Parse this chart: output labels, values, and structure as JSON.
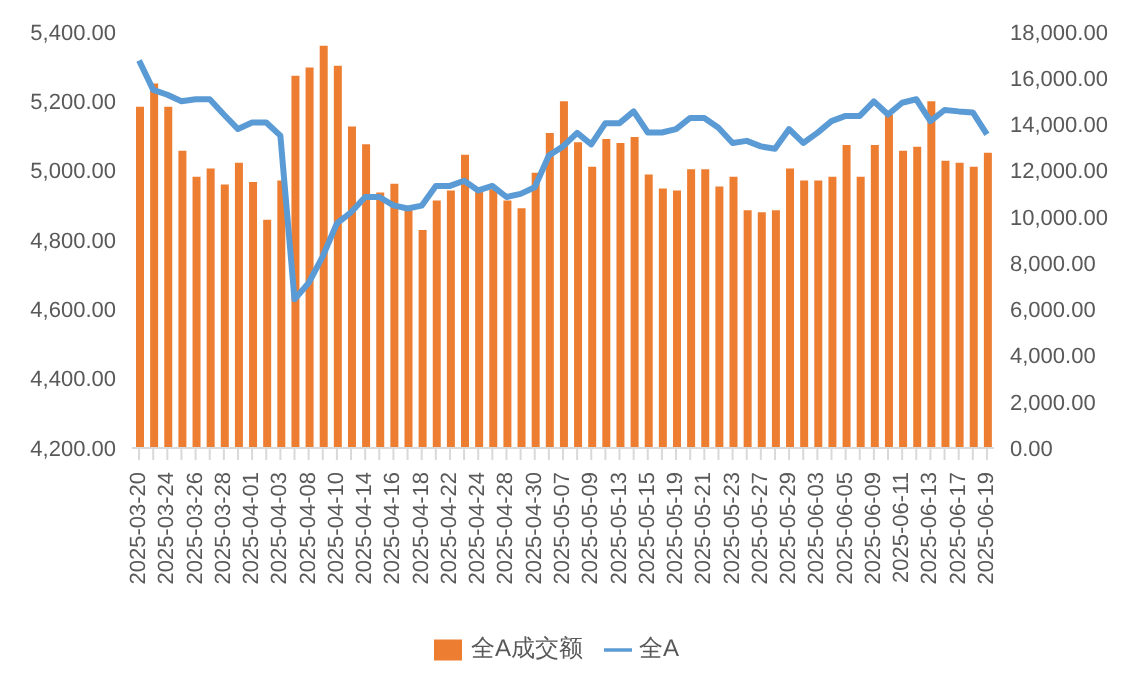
{
  "chart_data": {
    "type": "bar",
    "categories": [
      "2025-03-20",
      null,
      "2025-03-24",
      null,
      "2025-03-26",
      null,
      "2025-03-28",
      null,
      "2025-04-01",
      null,
      "2025-04-03",
      null,
      "2025-04-08",
      null,
      "2025-04-10",
      null,
      "2025-04-14",
      null,
      "2025-04-16",
      null,
      "2025-04-18",
      null,
      "2025-04-22",
      null,
      "2025-04-24",
      null,
      "2025-04-28",
      null,
      "2025-04-30",
      null,
      "2025-05-07",
      null,
      "2025-05-09",
      null,
      "2025-05-13",
      null,
      "2025-05-15",
      null,
      "2025-05-19",
      null,
      "2025-05-21",
      null,
      "2025-05-23",
      null,
      "2025-05-27",
      null,
      "2025-05-29",
      null,
      "2025-06-03",
      null,
      "2025-06-05",
      null,
      "2025-06-09",
      null,
      "2025-06-11",
      null,
      "2025-06-13",
      null,
      "2025-06-17",
      null,
      "2025-06-19"
    ],
    "series": [
      {
        "name": "全A成交额",
        "axis": "y2",
        "color": "#ed7d31",
        "values": [
          14770,
          15770,
          14770,
          12860,
          11740,
          12090,
          11400,
          12340,
          11510,
          9880,
          11570,
          16110,
          16460,
          17400,
          16540,
          13910,
          13140,
          11060,
          11430,
          10290,
          9430,
          10710,
          11140,
          12690,
          11080,
          11200,
          10710,
          10370,
          11910,
          13630,
          15000,
          13230,
          12170,
          13370,
          13200,
          13460,
          11830,
          11230,
          11140,
          12060,
          12060,
          11310,
          11740,
          10290,
          10200,
          10290,
          12090,
          11570,
          11570,
          11740,
          13110,
          11740,
          13110,
          14430,
          12860,
          13030,
          15000,
          12430,
          12340,
          12170,
          12770
        ]
      },
      {
        "name": "全A",
        "type": "line",
        "axis": "y",
        "color": "#5b9bd5",
        "values": [
          5318,
          5233,
          5219,
          5200,
          5206,
          5206,
          5162,
          5120,
          5139,
          5139,
          5101,
          4629,
          4676,
          4753,
          4848,
          4880,
          4924,
          4924,
          4900,
          4891,
          4899,
          4956,
          4956,
          4971,
          4943,
          4956,
          4924,
          4933,
          4952,
          5044,
          5070,
          5109,
          5076,
          5137,
          5137,
          5171,
          5110,
          5110,
          5120,
          5152,
          5152,
          5124,
          5080,
          5086,
          5070,
          5063,
          5120,
          5080,
          5109,
          5143,
          5158,
          5158,
          5200,
          5162,
          5196,
          5206,
          5143,
          5175,
          5171,
          5168,
          5105
        ]
      }
    ],
    "ylim": [
      4200,
      5400
    ],
    "yticks": [
      {
        "value": 4200,
        "label": "4,200.00"
      },
      {
        "value": 4400,
        "label": "4,400.00"
      },
      {
        "value": 4600,
        "label": "4,600.00"
      },
      {
        "value": 4800,
        "label": "4,800.00"
      },
      {
        "value": 5000,
        "label": "5,000.00"
      },
      {
        "value": 5200,
        "label": "5,200.00"
      },
      {
        "value": 5400,
        "label": "5,400.00"
      }
    ],
    "y2lim": [
      0,
      18000
    ],
    "y2ticks": [
      {
        "value": 0,
        "label": "0.00"
      },
      {
        "value": 2000,
        "label": "2,000.00"
      },
      {
        "value": 4000,
        "label": "4,000.00"
      },
      {
        "value": 6000,
        "label": "6,000.00"
      },
      {
        "value": 8000,
        "label": "8,000.00"
      },
      {
        "value": 10000,
        "label": "10,000.00"
      },
      {
        "value": 12000,
        "label": "12,000.00"
      },
      {
        "value": 14000,
        "label": "14,000.00"
      },
      {
        "value": 16000,
        "label": "16,000.00"
      },
      {
        "value": 18000,
        "label": "18,000.00"
      }
    ],
    "grid": false,
    "legend": "bottom",
    "marker": "none",
    "line_style": "solid"
  }
}
